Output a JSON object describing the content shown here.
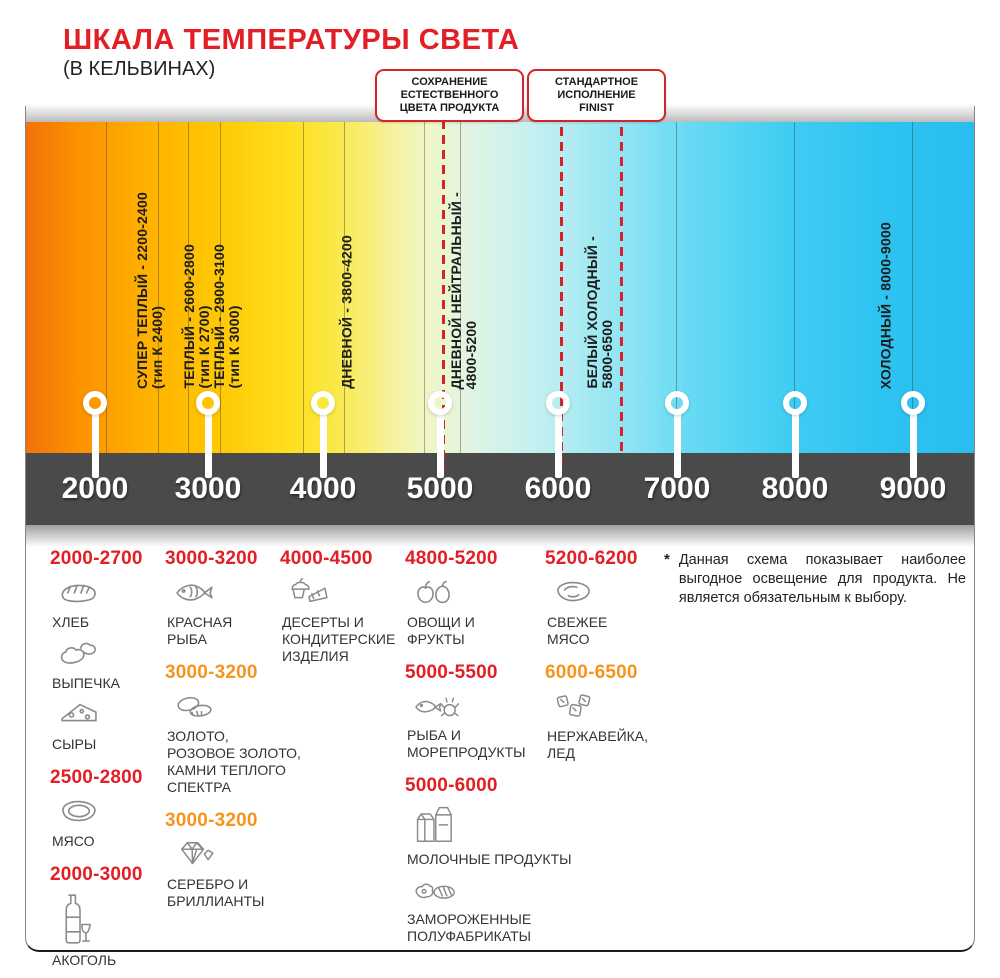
{
  "header": {
    "title": "ШКАЛА ТЕМПЕРАТУРЫ СВЕТА",
    "subtitle": "(В КЕЛЬВИНАХ)"
  },
  "callouts": [
    {
      "lines": [
        "СОХРАНЕНИЕ",
        "ЕСТЕСТВЕННОГО",
        "ЦВЕТА ПРОДУКТА"
      ]
    },
    {
      "lines": [
        "СТАНДАРТНОЕ",
        "ИСПОЛНЕНИЕ",
        "FINIST"
      ]
    }
  ],
  "band": {
    "labels": [
      {
        "lines": [
          "СУПЕР ТЕПЛЫЙ - 2200-2400",
          "(тип К 2400)"
        ]
      },
      {
        "lines": [
          "ТЕПЛЫЙ - 2600-2800",
          "(тип К 2700)"
        ]
      },
      {
        "lines": [
          "ТЕПЛЫЙ - 2900-3100",
          "(тип К 3000)"
        ]
      },
      {
        "lines": [
          "ДНЕВНОЙ - 3800-4200"
        ]
      },
      {
        "lines": [
          "ДНЕВНОЙ НЕЙТРАЛЬНЫЙ -",
          "4800-5200"
        ]
      },
      {
        "lines": [
          "БЕЛЫЙ ХОЛОДНЫЙ -",
          "5800-6500"
        ]
      },
      {
        "lines": [
          "ХОЛОДНЫЙ - 8000-9000"
        ]
      }
    ]
  },
  "scale": {
    "ticks": [
      "2000",
      "3000",
      "4000",
      "5000",
      "6000",
      "7000",
      "8000",
      "9000"
    ]
  },
  "legend": {
    "columns": [
      {
        "groups": [
          {
            "range": "2000-2700",
            "color": "red",
            "items": [
              {
                "icon": "bread-icon",
                "label_lines": [
                  "ХЛЕБ"
                ]
              },
              {
                "icon": "croissant-icon",
                "label_lines": [
                  "ВЫПЕЧКА"
                ]
              },
              {
                "icon": "cheese-icon",
                "label_lines": [
                  "СЫРЫ"
                ]
              }
            ]
          },
          {
            "range": "2500-2800",
            "color": "red",
            "items": [
              {
                "icon": "meat-icon",
                "label_lines": [
                  "МЯСО"
                ]
              }
            ]
          },
          {
            "range": "2000-3000",
            "color": "red",
            "items": [
              {
                "icon": "alcohol-icon",
                "label_lines": [
                  "АКОГОЛЬ"
                ]
              }
            ]
          }
        ]
      },
      {
        "groups": [
          {
            "range": "3000-3200",
            "color": "red",
            "items": [
              {
                "icon": "fish-icon",
                "label_lines": [
                  "КРАСНАЯ",
                  "РЫБА"
                ]
              }
            ]
          },
          {
            "range": "3000-3200",
            "color": "orange",
            "items": [
              {
                "icon": "rings-icon",
                "label_lines": [
                  "ЗОЛОТО,",
                  "РОЗОВОЕ ЗОЛОТО,",
                  "КАМНИ ТЕПЛОГО",
                  "СПЕКТРА"
                ]
              }
            ]
          },
          {
            "range": "3000-3200",
            "color": "orange",
            "items": [
              {
                "icon": "diamond-icon",
                "label_lines": [
                  "СЕРЕБРО И",
                  "БРИЛЛИАНТЫ"
                ]
              }
            ]
          }
        ]
      },
      {
        "groups": [
          {
            "range": "4000-4500",
            "color": "red",
            "items": [
              {
                "icon": "dessert-icon",
                "label_lines": [
                  "ДЕСЕРТЫ И",
                  "КОНДИТЕРСКИЕ",
                  "ИЗДЕЛИЯ"
                ]
              }
            ]
          }
        ]
      },
      {
        "groups": [
          {
            "range": "4800-5200",
            "color": "red",
            "items": [
              {
                "icon": "vegetables-icon",
                "label_lines": [
                  "ОВОЩИ И",
                  "ФРУКТЫ"
                ]
              }
            ]
          },
          {
            "range": "5000-5500",
            "color": "red",
            "items": [
              {
                "icon": "seafood-icon",
                "label_lines": [
                  "РЫБА И",
                  "МОРЕПРОДУКТЫ"
                ]
              }
            ]
          },
          {
            "range": "5000-6000",
            "color": "red",
            "items": [
              {
                "icon": "dairy-icon",
                "label_lines": [
                  "МОЛОЧНЫЕ ПРОДУКТЫ"
                ]
              },
              {
                "icon": "frozen-icon",
                "label_lines": [
                  "ЗАМОРОЖЕННЫЕ",
                  "ПОЛУФАБРИКАТЫ"
                ]
              }
            ]
          }
        ]
      },
      {
        "groups": [
          {
            "range": "5200-6200",
            "color": "red",
            "items": [
              {
                "icon": "fresh-meat-icon",
                "label_lines": [
                  "СВЕЖЕЕ",
                  "МЯСО"
                ]
              }
            ]
          },
          {
            "range": "6000-6500",
            "color": "orange",
            "items": [
              {
                "icon": "ice-icon",
                "label_lines": [
                  "НЕРЖАВЕЙКА,",
                  "ЛЕД"
                ]
              }
            ]
          }
        ]
      }
    ]
  },
  "footnote": {
    "marker": "*",
    "text": "Данная схема показывает наиболее выгодное освещение для продукта. Не является обязательным к выбору."
  },
  "colors": {
    "accent_red": "#E31E24",
    "accent_orange": "#F7941D",
    "scale_band": "#4A4A4A",
    "gradient_start": "#F2700A",
    "gradient_end": "#28BDEF"
  }
}
